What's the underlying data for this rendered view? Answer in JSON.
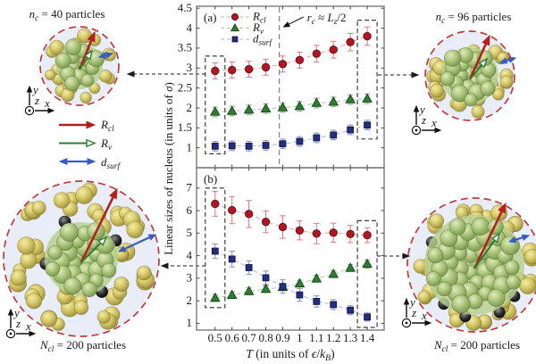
{
  "labels": {
    "top_left_cluster": {
      "text": "n_c = 40 particles",
      "segments": [
        [
          "n",
          "i"
        ],
        [
          "c",
          "is"
        ],
        [
          " = 40 particles",
          ""
        ]
      ]
    },
    "top_right_cluster": {
      "text": "n_c = 96 particles",
      "segments": [
        [
          "n",
          "i"
        ],
        [
          "c",
          "is"
        ],
        [
          " = 96 particles",
          ""
        ]
      ]
    },
    "bottom_left_cluster": {
      "text": "N_cl = 200 particles",
      "segments": [
        [
          "N",
          "i"
        ],
        [
          "cl",
          "is"
        ],
        [
          " = 200 particles",
          ""
        ]
      ]
    },
    "bottom_right_cluster": {
      "text": "N_cl = 200 particles",
      "segments": [
        [
          "N",
          "i"
        ],
        [
          "cl",
          "is"
        ],
        [
          " = 200 particles",
          ""
        ]
      ]
    },
    "arrow_legend": [
      {
        "text": "R_cl",
        "segments": [
          [
            "R",
            "i"
          ],
          [
            "cl",
            "is"
          ]
        ],
        "color": "#b32020",
        "style": "solid-arrow"
      },
      {
        "text": "R_v",
        "segments": [
          [
            "R",
            "i"
          ],
          [
            "v",
            "is"
          ]
        ],
        "color": "#2f7d32",
        "style": "open-arrow"
      },
      {
        "text": "d_surf",
        "segments": [
          [
            "d",
            "i"
          ],
          [
            "surf",
            "is"
          ]
        ],
        "color": "#3a5bbf",
        "style": "double-arrow"
      }
    ],
    "axis_triad": {
      "x": "x",
      "y": "y",
      "z": "z"
    }
  },
  "axis_labels": {
    "x_text": "T (in units of ϵ/k_B)",
    "x_segments": [
      [
        "T",
        "i"
      ],
      [
        " (in units of ",
        ""
      ],
      [
        "ϵ",
        "i"
      ],
      [
        "/",
        ""
      ],
      [
        "k",
        "i"
      ],
      [
        "B",
        "is"
      ],
      [
        ")",
        ""
      ]
    ],
    "y_text": "Linear sizes of nucleus (in units of σ)",
    "y_segments": [
      [
        "Linear sizes of nucleus (in units of ",
        ""
      ],
      [
        "σ",
        "i"
      ],
      [
        ")",
        ""
      ]
    ]
  },
  "chart_data": [
    {
      "type": "scatter",
      "panel": "(a)",
      "legend": true,
      "legend_position": "top-left",
      "x": [
        0.5,
        0.6,
        0.7,
        0.8,
        0.9,
        1.0,
        1.1,
        1.2,
        1.3,
        1.4
      ],
      "xlim": [
        0.39,
        1.5
      ],
      "ylim": [
        0.5,
        4.55
      ],
      "yticks": [
        1,
        1.5,
        2,
        2.5,
        3,
        3.5,
        4,
        4.5
      ],
      "xtick_labels": [],
      "series": [
        {
          "name": "R_cl",
          "name_segments": [
            [
              "R",
              "i"
            ],
            [
              "cl",
              "is"
            ]
          ],
          "marker": "circle",
          "color": "#b01724",
          "edge": "#74101a",
          "err_color": "#d9848d",
          "line_color": "#e3a6ab",
          "values": [
            2.93,
            2.95,
            2.97,
            3.02,
            3.1,
            3.2,
            3.36,
            3.46,
            3.65,
            3.8
          ],
          "errors": [
            0.2,
            0.2,
            0.2,
            0.2,
            0.2,
            0.2,
            0.21,
            0.21,
            0.22,
            0.23
          ]
        },
        {
          "name": "R_v",
          "name_segments": [
            [
              "R",
              "i"
            ],
            [
              "v",
              "is"
            ]
          ],
          "marker": "triangle",
          "color": "#2f7d32",
          "edge": "#1c4a1e",
          "err_color": "#8fb591",
          "line_color": "#abc9ab",
          "values": [
            1.9,
            1.92,
            1.95,
            1.98,
            2.01,
            2.04,
            2.12,
            2.15,
            2.21,
            2.23
          ],
          "errors": [
            0.12,
            0.12,
            0.12,
            0.12,
            0.12,
            0.12,
            0.12,
            0.12,
            0.12,
            0.12
          ]
        },
        {
          "name": "d_surf",
          "name_segments": [
            [
              "d",
              "i"
            ],
            [
              "surf",
              "is"
            ]
          ],
          "marker": "square",
          "color": "#252d83",
          "edge": "#151a4e",
          "err_color": "#9297c4",
          "line_color": "#b0b4d6",
          "values": [
            1.04,
            1.05,
            1.04,
            1.06,
            1.1,
            1.16,
            1.25,
            1.32,
            1.45,
            1.57
          ],
          "errors": [
            0.12,
            0.12,
            0.12,
            0.12,
            0.12,
            0.12,
            0.12,
            0.12,
            0.12,
            0.12
          ]
        }
      ],
      "vline": {
        "x": 0.88,
        "label_text": "r_c ≈ L_z/2",
        "label_segments": [
          [
            "r",
            "i"
          ],
          [
            "c",
            "is"
          ],
          [
            " ≈ ",
            ""
          ],
          [
            "L",
            "i"
          ],
          [
            "z",
            "is"
          ],
          [
            "/2",
            ""
          ]
        ]
      },
      "boxes": [
        {
          "x": 0.5,
          "y0": 0.85,
          "y1": 3.3
        },
        {
          "x": 1.4,
          "y0": 1.22,
          "y1": 4.2
        }
      ]
    },
    {
      "type": "scatter",
      "panel": "(b)",
      "legend": false,
      "x": [
        0.5,
        0.6,
        0.7,
        0.8,
        0.9,
        1.0,
        1.1,
        1.2,
        1.3,
        1.4
      ],
      "xlim": [
        0.39,
        1.5
      ],
      "ylim": [
        0.7,
        7.9
      ],
      "yticks": [
        1,
        2,
        3,
        4,
        5,
        6,
        7
      ],
      "xtick_labels": [
        "0.5",
        "0.6",
        "0.7",
        "0.8",
        "0.9",
        "1",
        "1.1",
        "1.2",
        "1.3",
        "1.4"
      ],
      "series": [
        {
          "name": "R_cl",
          "name_segments": [
            [
              "R",
              "i"
            ],
            [
              "cl",
              "is"
            ]
          ],
          "marker": "circle",
          "color": "#b01724",
          "edge": "#74101a",
          "err_color": "#d9848d",
          "line_color": "#e3a6ab",
          "values": [
            6.3,
            6.02,
            5.85,
            5.5,
            5.27,
            5.12,
            4.98,
            5.02,
            4.96,
            4.91
          ],
          "errors": [
            0.55,
            0.6,
            0.6,
            0.48,
            0.5,
            0.42,
            0.45,
            0.42,
            0.38,
            0.33
          ]
        },
        {
          "name": "R_v",
          "name_segments": [
            [
              "R",
              "i"
            ],
            [
              "v",
              "is"
            ]
          ],
          "marker": "triangle",
          "color": "#2f7d32",
          "edge": "#1c4a1e",
          "err_color": "#8fb591",
          "line_color": "#abc9ab",
          "values": [
            2.12,
            2.25,
            2.42,
            2.52,
            2.6,
            2.76,
            2.98,
            3.18,
            3.45,
            3.63
          ],
          "errors": [
            0.15,
            0.15,
            0.15,
            0.15,
            0.15,
            0.15,
            0.15,
            0.15,
            0.15,
            0.18
          ]
        },
        {
          "name": "d_surf",
          "name_segments": [
            [
              "d",
              "i"
            ],
            [
              "surf",
              "is"
            ]
          ],
          "marker": "square",
          "color": "#252d83",
          "edge": "#151a4e",
          "err_color": "#9297c4",
          "line_color": "#b0b4d6",
          "values": [
            4.2,
            3.85,
            3.47,
            3.02,
            2.63,
            2.26,
            1.97,
            1.83,
            1.58,
            1.28
          ],
          "errors": [
            0.32,
            0.35,
            0.3,
            0.3,
            0.3,
            0.28,
            0.25,
            0.22,
            0.2,
            0.18
          ]
        }
      ],
      "boxes": [
        {
          "x": 0.5,
          "y0": 1.7,
          "y1": 7.0
        },
        {
          "x": 1.4,
          "y0": 0.82,
          "y1": 5.55
        }
      ]
    }
  ],
  "colors": {
    "cluster_bg": "#e9edf8",
    "cluster_ring": "#c23b3b",
    "core_disc": "#b7d08f",
    "frame": "#7a7a7a",
    "red_arrow": "#b32020",
    "green_arrow": "#2f7d32",
    "blue_arrow": "#3a5bbf"
  }
}
